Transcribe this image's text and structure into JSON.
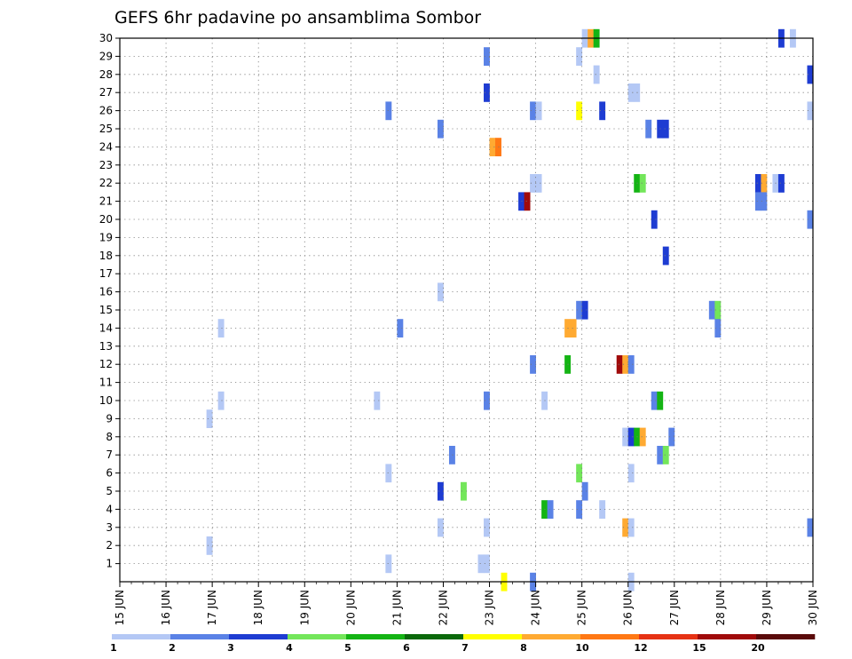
{
  "chart_data": {
    "type": "heatmap",
    "title": "GEFS 6hr padavine po ansamblima Sombor",
    "xlabel": "",
    "ylabel": "",
    "x_tick_labels": [
      "15 JUN",
      "16 JUN",
      "17 JUN",
      "18 JUN",
      "19 JUN",
      "20 JUN",
      "21 JUN",
      "22 JUN",
      "23 JUN",
      "24 JUN",
      "25 JUN",
      "26 JUN",
      "27 JUN",
      "28 JUN",
      "29 JUN",
      "30 JUN"
    ],
    "xlim": [
      0,
      60
    ],
    "y_tick_labels": [
      "1",
      "2",
      "3",
      "4",
      "5",
      "6",
      "7",
      "8",
      "9",
      "10",
      "11",
      "12",
      "13",
      "14",
      "15",
      "16",
      "17",
      "18",
      "19",
      "20",
      "21",
      "22",
      "23",
      "24",
      "25",
      "26",
      "27",
      "28",
      "29",
      "30"
    ],
    "ylim": [
      0,
      30
    ],
    "grid": true,
    "legend_placement": "bottom",
    "legend": {
      "labels": [
        "1",
        "2",
        "3",
        "4",
        "5",
        "6",
        "7",
        "8",
        "10",
        "12",
        "15",
        "20"
      ],
      "colors": [
        "#b4c8f5",
        "#5a82e6",
        "#1e3cd2",
        "#73e65a",
        "#14b414",
        "#0a690a",
        "#ffff00",
        "#ffaa32",
        "#ff7814",
        "#e63214",
        "#a00a0a",
        "#5a0a0a"
      ]
    },
    "cells": [
      {
        "t": 40.25,
        "m": 30,
        "c": 1
      },
      {
        "t": 40.75,
        "m": 30,
        "c": 8
      },
      {
        "t": 41.25,
        "m": 30,
        "c": 5
      },
      {
        "t": 57.25,
        "m": 30,
        "c": 3
      },
      {
        "t": 58.25,
        "m": 30,
        "c": 1
      },
      {
        "t": 31.75,
        "m": 29,
        "c": 2
      },
      {
        "t": 39.75,
        "m": 29,
        "c": 1
      },
      {
        "t": 41.25,
        "m": 28,
        "c": 1
      },
      {
        "t": 59.75,
        "m": 28,
        "c": 3
      },
      {
        "t": 31.75,
        "m": 27,
        "c": 3
      },
      {
        "t": 44.25,
        "m": 27,
        "c": 1
      },
      {
        "t": 44.75,
        "m": 27,
        "c": 1
      },
      {
        "t": 23.25,
        "m": 26,
        "c": 2
      },
      {
        "t": 35.75,
        "m": 26,
        "c": 2
      },
      {
        "t": 36.25,
        "m": 26,
        "c": 1
      },
      {
        "t": 39.75,
        "m": 26,
        "c": 7
      },
      {
        "t": 41.75,
        "m": 26,
        "c": 3
      },
      {
        "t": 59.75,
        "m": 26,
        "c": 1
      },
      {
        "t": 27.75,
        "m": 25,
        "c": 2
      },
      {
        "t": 45.75,
        "m": 25,
        "c": 2
      },
      {
        "t": 46.75,
        "m": 25,
        "c": 3
      },
      {
        "t": 47.25,
        "m": 25,
        "c": 3
      },
      {
        "t": 32.25,
        "m": 24,
        "c": 8
      },
      {
        "t": 32.75,
        "m": 24,
        "c": 9
      },
      {
        "t": 35.75,
        "m": 22,
        "c": 1
      },
      {
        "t": 36.25,
        "m": 22,
        "c": 1
      },
      {
        "t": 44.75,
        "m": 22,
        "c": 5
      },
      {
        "t": 45.25,
        "m": 22,
        "c": 4
      },
      {
        "t": 55.25,
        "m": 22,
        "c": 3
      },
      {
        "t": 55.75,
        "m": 22,
        "c": 8
      },
      {
        "t": 56.75,
        "m": 22,
        "c": 1
      },
      {
        "t": 57.25,
        "m": 22,
        "c": 3
      },
      {
        "t": 34.75,
        "m": 21,
        "c": 3
      },
      {
        "t": 35.25,
        "m": 21,
        "c": 11
      },
      {
        "t": 55.25,
        "m": 21,
        "c": 2
      },
      {
        "t": 55.75,
        "m": 21,
        "c": 2
      },
      {
        "t": 46.25,
        "m": 20,
        "c": 3
      },
      {
        "t": 59.75,
        "m": 20,
        "c": 2
      },
      {
        "t": 47.25,
        "m": 18,
        "c": 3
      },
      {
        "t": 27.75,
        "m": 16,
        "c": 1
      },
      {
        "t": 39.75,
        "m": 15,
        "c": 2
      },
      {
        "t": 40.25,
        "m": 15,
        "c": 3
      },
      {
        "t": 51.25,
        "m": 15,
        "c": 2
      },
      {
        "t": 51.75,
        "m": 15,
        "c": 4
      },
      {
        "t": 8.75,
        "m": 14,
        "c": 1
      },
      {
        "t": 24.25,
        "m": 14,
        "c": 2
      },
      {
        "t": 38.75,
        "m": 14,
        "c": 8
      },
      {
        "t": 39.25,
        "m": 14,
        "c": 8
      },
      {
        "t": 51.75,
        "m": 14,
        "c": 2
      },
      {
        "t": 35.75,
        "m": 12,
        "c": 2
      },
      {
        "t": 38.75,
        "m": 12,
        "c": 5
      },
      {
        "t": 43.25,
        "m": 12,
        "c": 11
      },
      {
        "t": 43.75,
        "m": 12,
        "c": 8
      },
      {
        "t": 44.25,
        "m": 12,
        "c": 2
      },
      {
        "t": 8.75,
        "m": 10,
        "c": 1
      },
      {
        "t": 22.25,
        "m": 10,
        "c": 1
      },
      {
        "t": 31.75,
        "m": 10,
        "c": 2
      },
      {
        "t": 36.75,
        "m": 10,
        "c": 1
      },
      {
        "t": 46.25,
        "m": 10,
        "c": 2
      },
      {
        "t": 46.75,
        "m": 10,
        "c": 5
      },
      {
        "t": 7.75,
        "m": 9,
        "c": 1
      },
      {
        "t": 43.75,
        "m": 8,
        "c": 1
      },
      {
        "t": 44.25,
        "m": 8,
        "c": 3
      },
      {
        "t": 44.75,
        "m": 8,
        "c": 5
      },
      {
        "t": 45.25,
        "m": 8,
        "c": 8
      },
      {
        "t": 47.75,
        "m": 8,
        "c": 2
      },
      {
        "t": 28.75,
        "m": 7,
        "c": 2
      },
      {
        "t": 46.75,
        "m": 7,
        "c": 2
      },
      {
        "t": 47.25,
        "m": 7,
        "c": 4
      },
      {
        "t": 23.25,
        "m": 6,
        "c": 1
      },
      {
        "t": 39.75,
        "m": 6,
        "c": 4
      },
      {
        "t": 44.25,
        "m": 6,
        "c": 1
      },
      {
        "t": 27.75,
        "m": 5,
        "c": 3
      },
      {
        "t": 29.75,
        "m": 5,
        "c": 4
      },
      {
        "t": 40.25,
        "m": 5,
        "c": 2
      },
      {
        "t": 36.75,
        "m": 4,
        "c": 5
      },
      {
        "t": 37.25,
        "m": 4,
        "c": 2
      },
      {
        "t": 39.75,
        "m": 4,
        "c": 2
      },
      {
        "t": 41.75,
        "m": 4,
        "c": 1
      },
      {
        "t": 27.75,
        "m": 3,
        "c": 1
      },
      {
        "t": 31.75,
        "m": 3,
        "c": 1
      },
      {
        "t": 43.75,
        "m": 3,
        "c": 8
      },
      {
        "t": 44.25,
        "m": 3,
        "c": 1
      },
      {
        "t": 59.75,
        "m": 3,
        "c": 2
      },
      {
        "t": 7.75,
        "m": 2,
        "c": 1
      },
      {
        "t": 23.25,
        "m": 1,
        "c": 1
      },
      {
        "t": 31.25,
        "m": 1,
        "c": 1
      },
      {
        "t": 31.75,
        "m": 1,
        "c": 1
      },
      {
        "t": 33.25,
        "m": 0,
        "c": 7
      },
      {
        "t": 35.75,
        "m": 0,
        "c": 2
      },
      {
        "t": 44.25,
        "m": 0,
        "c": 1
      }
    ]
  }
}
